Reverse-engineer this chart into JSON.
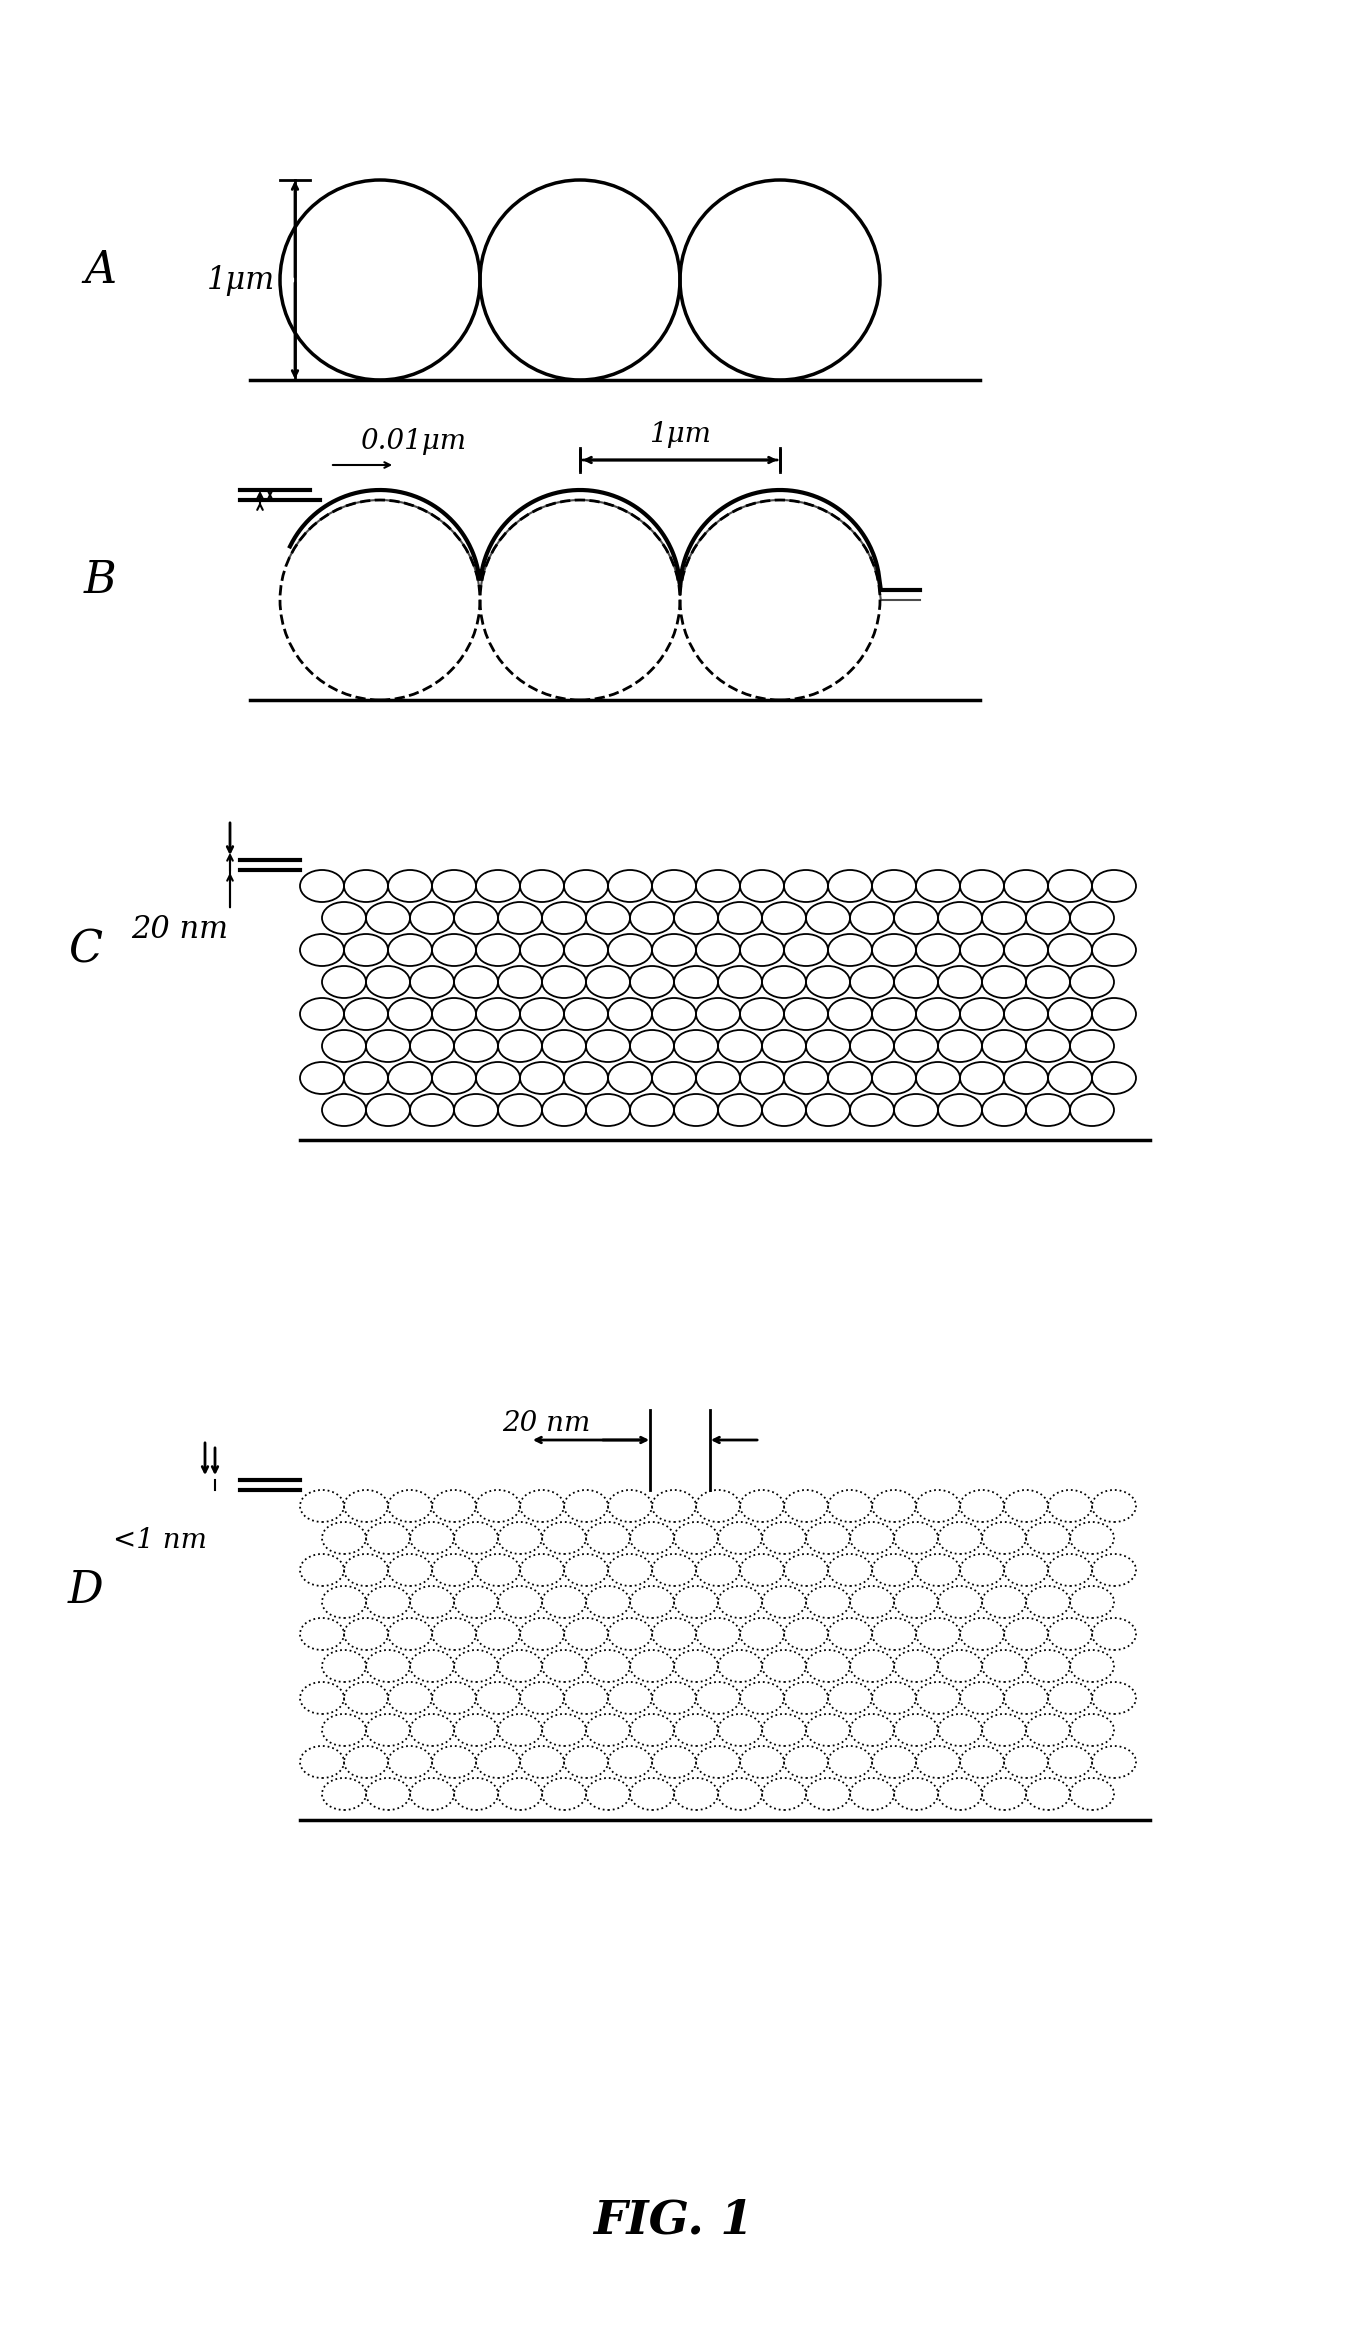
{
  "fig_width": 13.46,
  "fig_height": 23.48,
  "bg_color": "#ffffff",
  "label_A": "A",
  "label_B": "B",
  "label_C": "C",
  "label_D": "D",
  "dim_A": "1μm",
  "dim_B1": "0.01μm",
  "dim_B2": "1μm",
  "dim_C": "20 nm",
  "dim_D1": "20 nm",
  "dim_D2": "<1 nm",
  "fig_label": "FIG. 1",
  "line_color": "#000000",
  "circle_edge": "#000000"
}
